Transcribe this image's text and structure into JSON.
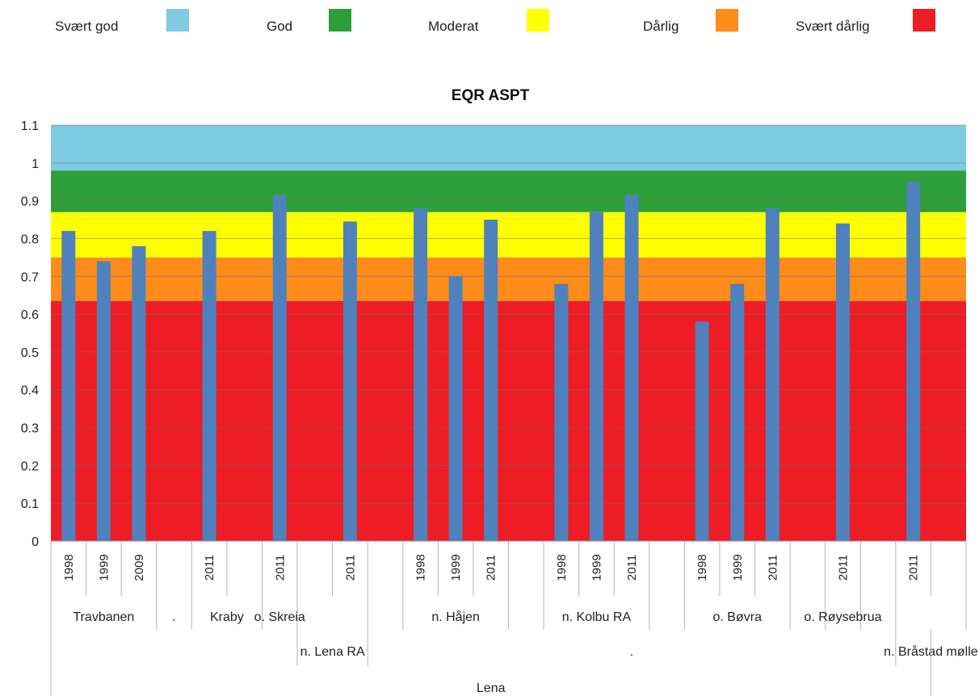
{
  "chart_data": {
    "type": "bar",
    "title": "EQR ASPT",
    "ylim": [
      0,
      1.1
    ],
    "y_ticks": [
      "0",
      "0.1",
      "0.2",
      "0.3",
      "0.4",
      "0.5",
      "0.6",
      "0.7",
      "0.8",
      "0.9",
      "1",
      "1.1"
    ],
    "y_tick_values": [
      0,
      0.1,
      0.2,
      0.3,
      0.4,
      0.5,
      0.6,
      0.7,
      0.8,
      0.9,
      1.0,
      1.1
    ],
    "grid": true,
    "bar_color": "#4f81bd",
    "legend": [
      {
        "label": "Svært god",
        "color": "#7ecbe3"
      },
      {
        "label": "God",
        "color": "#2e9e3a"
      },
      {
        "label": "Moderat",
        "color": "#ffff00"
      },
      {
        "label": "Dårlig",
        "color": "#ff8c1a"
      },
      {
        "label": "Svært dårlig",
        "color": "#ee1c24"
      }
    ],
    "class_bands": [
      {
        "class": "Svært dårlig",
        "from": 0,
        "to": 0.635
      },
      {
        "class": "Dårlig",
        "from": 0.635,
        "to": 0.75
      },
      {
        "class": "Moderat",
        "from": 0.75,
        "to": 0.87
      },
      {
        "class": "God",
        "from": 0.87,
        "to": 0.98
      },
      {
        "class": "Svært god",
        "from": 0.98,
        "to": 1.1
      }
    ],
    "categories": [
      "1998",
      "1999",
      "2009",
      "",
      "2011",
      "",
      "2011",
      "",
      "2011",
      "",
      "1998",
      "1999",
      "2011",
      "",
      "1998",
      "1999",
      "2011",
      "",
      "1998",
      "1999",
      "2011",
      "",
      "2011",
      "",
      "2011",
      ""
    ],
    "values": [
      0.82,
      0.74,
      0.78,
      null,
      0.82,
      null,
      0.915,
      null,
      0.845,
      null,
      0.88,
      0.7,
      0.85,
      null,
      0.68,
      0.87,
      0.915,
      null,
      0.58,
      0.68,
      0.88,
      null,
      0.84,
      null,
      0.95,
      null
    ],
    "stations": [
      {
        "label": "Travbanen",
        "start": 0,
        "end": 3
      },
      {
        "label": ".",
        "start": 3,
        "end": 4
      },
      {
        "label": "Kraby",
        "start": 4,
        "end": 6
      },
      {
        "label": "o. Skreia",
        "start": 6,
        "end": 7
      },
      {
        "label": "n. Lena RA",
        "start": 7,
        "end": 9
      },
      {
        "label": "n. Håjen",
        "start": 10,
        "end": 13
      },
      {
        "label": "n. Kolbu RA",
        "start": 14,
        "end": 17
      },
      {
        "label": "o. Bøvra",
        "start": 18,
        "end": 21
      },
      {
        "label": "o. Røysebrua",
        "start": 22,
        "end": 23
      },
      {
        "label": "n. Bråstad mølle",
        "start": 24,
        "end": 26
      }
    ],
    "group": {
      "label": "Lena",
      "start": 0,
      "end": 25
    },
    "stray_marks": [
      {
        "label": ".",
        "index": 16
      }
    ]
  }
}
